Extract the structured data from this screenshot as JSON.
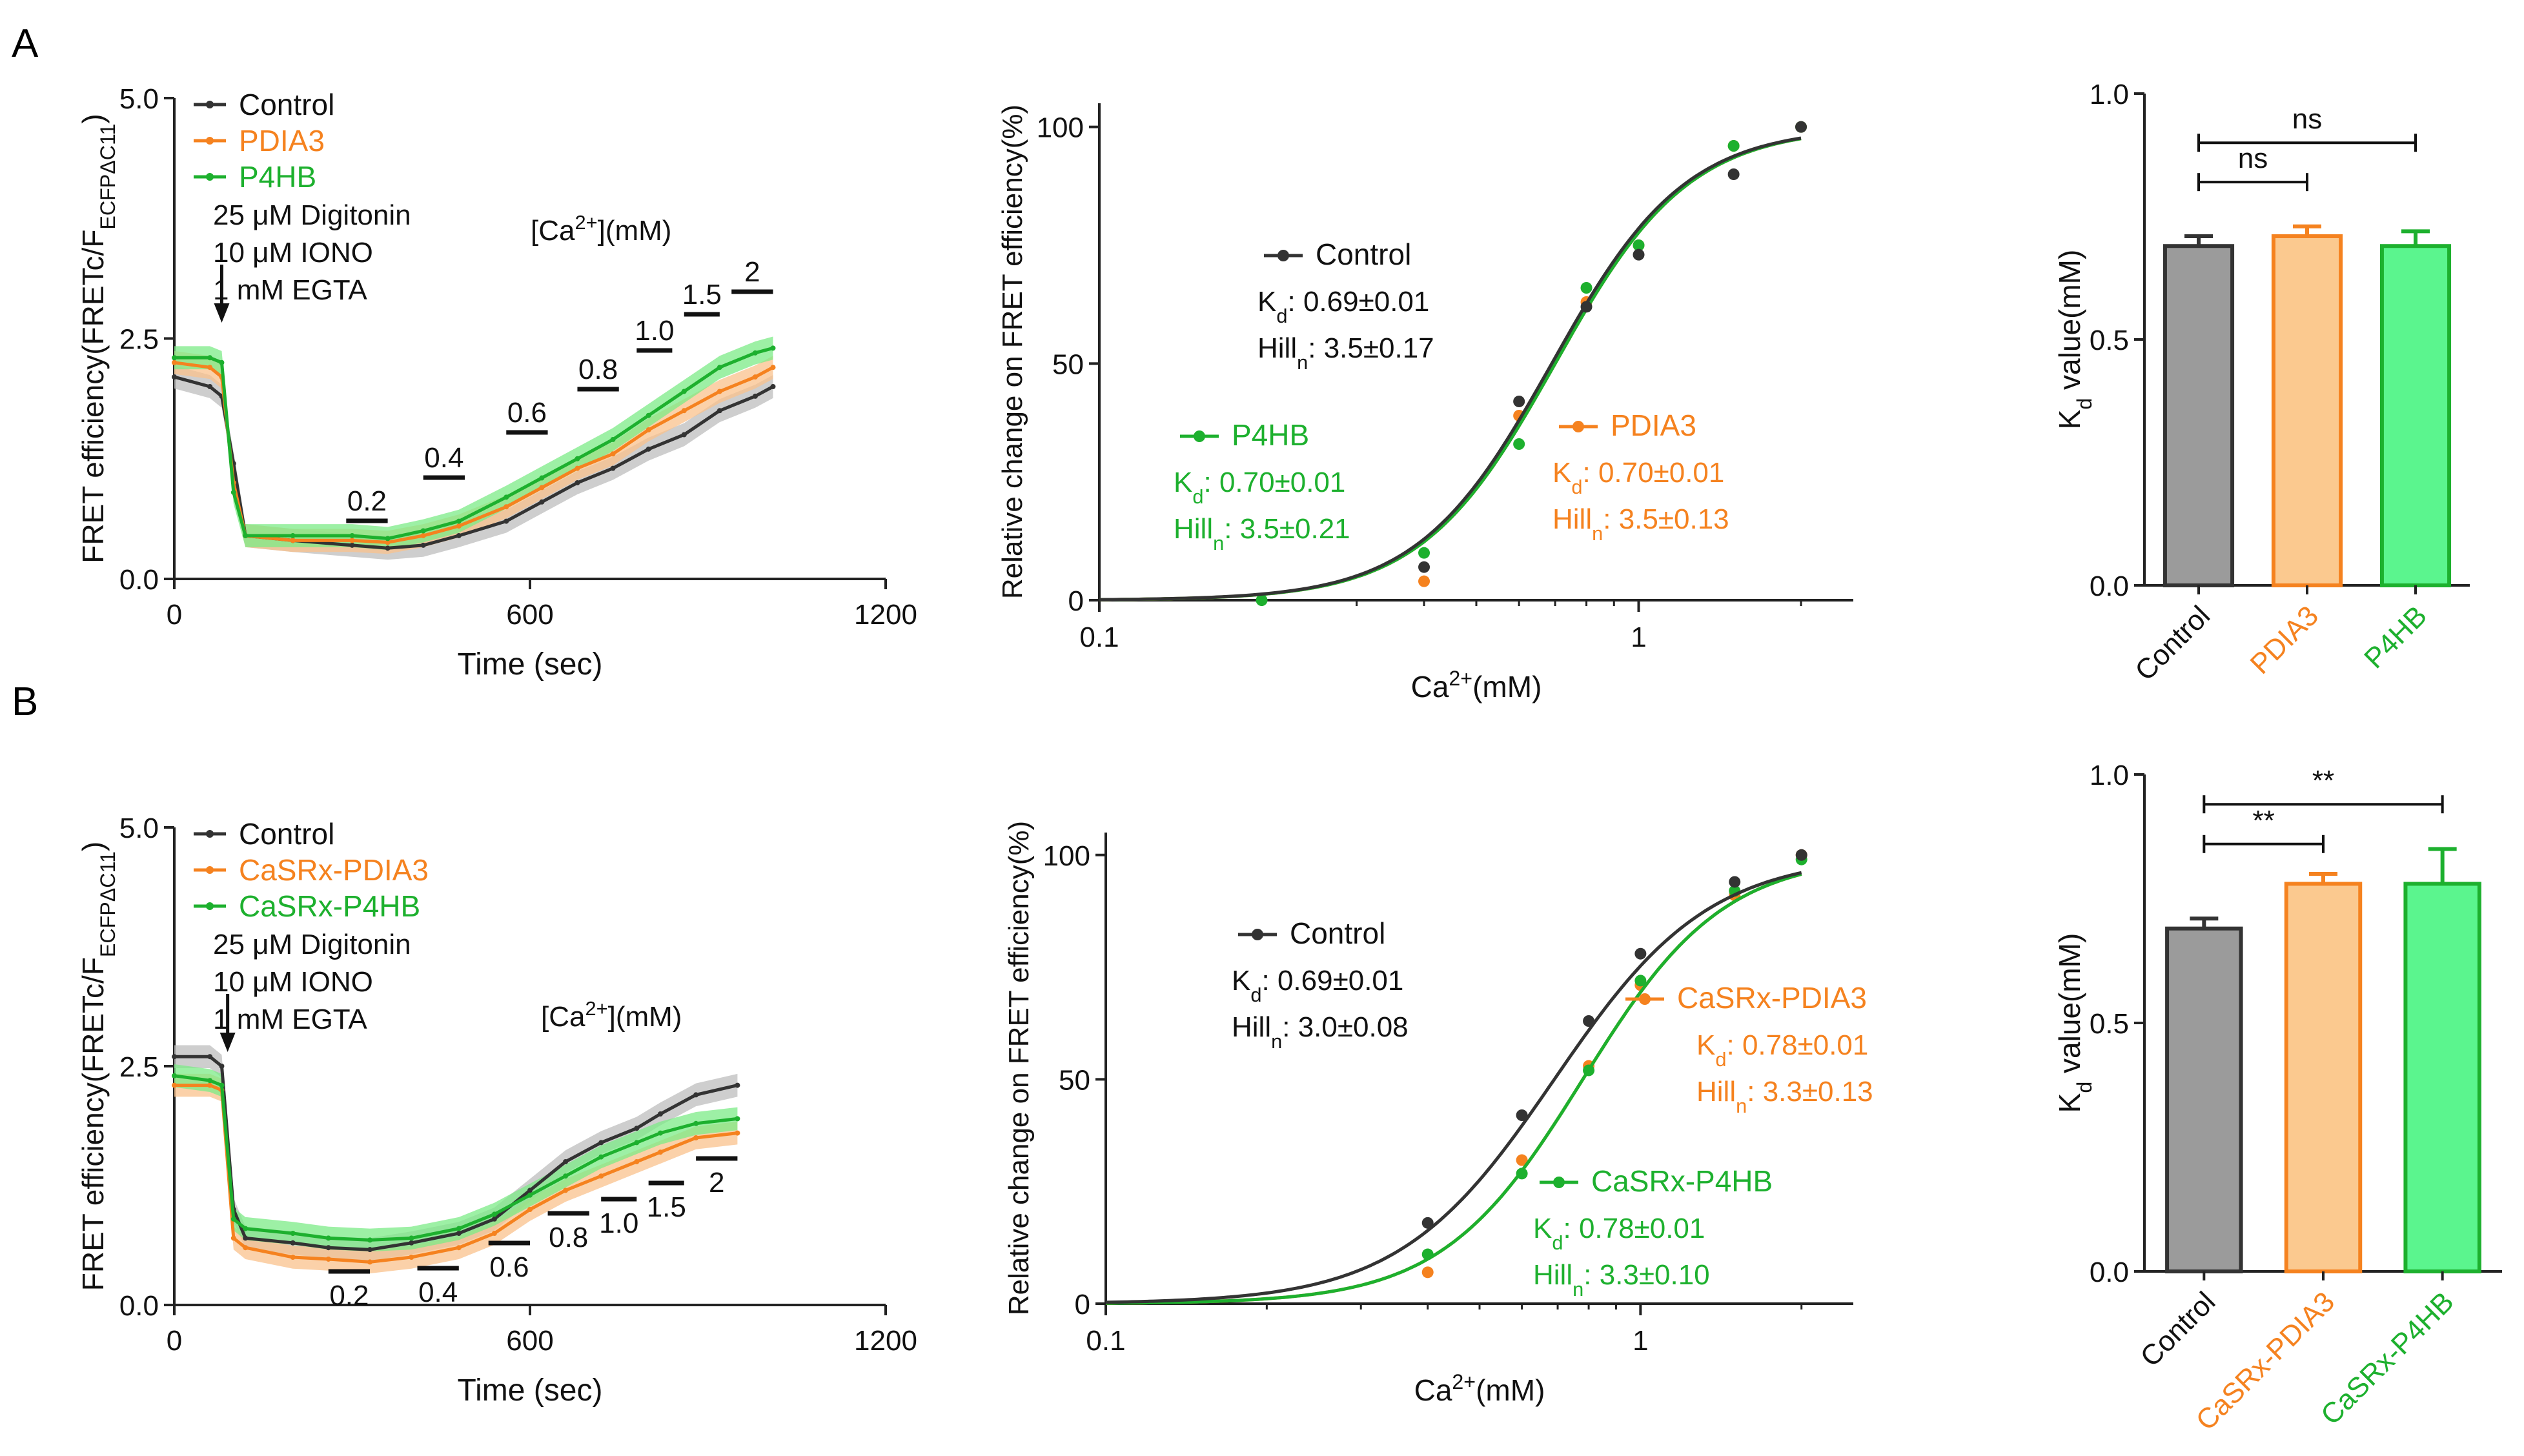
{
  "panel_labels": {
    "a": "A",
    "b": "B"
  },
  "colors": {
    "control": "#333333",
    "pdia3": "#F5821F",
    "p4hb": "#1DB02E",
    "control_band": "#bdbdbd",
    "pdia3_band": "#F9C18C",
    "p4hb_band": "#7CEB87",
    "bar_control": "#9b9b9b",
    "bar_pdia3": "#FBC98F",
    "bar_p4hb": "#5BF58E"
  },
  "chart_data": [
    {
      "id": "A-trace",
      "type": "line",
      "xlabel": "Time (sec)",
      "ylabel": "FRET efficiency(FRETc/F",
      "ylabel_sub": "ECFPΔC11",
      "ylabel_end": ")",
      "xlim": [
        0,
        1200
      ],
      "ylim": [
        0,
        5
      ],
      "xticks": [
        "0",
        "600",
        "1200"
      ],
      "yticks": [
        "0.0",
        "2.5",
        "5.0"
      ],
      "legend": [
        "Control",
        "PDIA3",
        "P4HB"
      ],
      "treatment": [
        "25 μM Digitonin",
        "10 μM IONO",
        "1 mM EGTA"
      ],
      "treatment_time": 80,
      "ca_label": "[Ca",
      "ca_sup": "2+",
      "ca_unit": "](mM)",
      "steps": [
        {
          "label": "0.2",
          "start": 290,
          "end": 360
        },
        {
          "label": "0.4",
          "start": 420,
          "end": 490
        },
        {
          "label": "0.6",
          "start": 560,
          "end": 630
        },
        {
          "label": "0.8",
          "start": 680,
          "end": 750
        },
        {
          "label": "1.0",
          "start": 780,
          "end": 840
        },
        {
          "label": "1.5",
          "start": 860,
          "end": 920
        },
        {
          "label": "2",
          "start": 940,
          "end": 1010
        }
      ],
      "series": [
        {
          "name": "Control",
          "points": [
            [
              0,
              2.1
            ],
            [
              60,
              2.0
            ],
            [
              80,
              1.9
            ],
            [
              100,
              1.2
            ],
            [
              120,
              0.45
            ],
            [
              200,
              0.4
            ],
            [
              300,
              0.35
            ],
            [
              360,
              0.32
            ],
            [
              420,
              0.35
            ],
            [
              480,
              0.45
            ],
            [
              560,
              0.6
            ],
            [
              620,
              0.8
            ],
            [
              680,
              1.0
            ],
            [
              740,
              1.15
            ],
            [
              800,
              1.35
            ],
            [
              860,
              1.5
            ],
            [
              920,
              1.75
            ],
            [
              980,
              1.9
            ],
            [
              1010,
              2.0
            ]
          ]
        },
        {
          "name": "PDIA3",
          "points": [
            [
              0,
              2.25
            ],
            [
              60,
              2.2
            ],
            [
              80,
              2.1
            ],
            [
              100,
              1.0
            ],
            [
              120,
              0.45
            ],
            [
              200,
              0.4
            ],
            [
              300,
              0.4
            ],
            [
              360,
              0.38
            ],
            [
              420,
              0.45
            ],
            [
              480,
              0.55
            ],
            [
              560,
              0.75
            ],
            [
              620,
              0.95
            ],
            [
              680,
              1.15
            ],
            [
              740,
              1.3
            ],
            [
              800,
              1.55
            ],
            [
              860,
              1.75
            ],
            [
              920,
              1.95
            ],
            [
              980,
              2.1
            ],
            [
              1010,
              2.2
            ]
          ]
        },
        {
          "name": "P4HB",
          "points": [
            [
              0,
              2.3
            ],
            [
              60,
              2.3
            ],
            [
              80,
              2.25
            ],
            [
              100,
              0.9
            ],
            [
              120,
              0.45
            ],
            [
              200,
              0.45
            ],
            [
              300,
              0.45
            ],
            [
              360,
              0.42
            ],
            [
              420,
              0.5
            ],
            [
              480,
              0.6
            ],
            [
              560,
              0.85
            ],
            [
              620,
              1.05
            ],
            [
              680,
              1.25
            ],
            [
              740,
              1.45
            ],
            [
              800,
              1.7
            ],
            [
              860,
              1.95
            ],
            [
              920,
              2.2
            ],
            [
              980,
              2.35
            ],
            [
              1010,
              2.4
            ]
          ]
        }
      ]
    },
    {
      "id": "A-curve",
      "type": "line",
      "xscale": "log",
      "xlabel": "Ca",
      "xlabel_sup": "2+",
      "xlabel_end": "(mM)",
      "ylabel": "Relative change on FRET efficiency(%)",
      "xlim": [
        0.1,
        2.5
      ],
      "ylim": [
        0,
        105
      ],
      "xticks": [
        "0.1",
        "1"
      ],
      "yticks": [
        "0",
        "50",
        "100"
      ],
      "series": [
        {
          "name": "Control",
          "kd": 0.69,
          "hill": 3.5,
          "kd_text": ": 0.69±0.01",
          "hill_text": ": 3.5±0.17",
          "points": [
            [
              0.4,
              7
            ],
            [
              0.6,
              42
            ],
            [
              0.8,
              62
            ],
            [
              1.0,
              73
            ],
            [
              1.5,
              90
            ],
            [
              2.0,
              100
            ]
          ]
        },
        {
          "name": "PDIA3",
          "kd": 0.7,
          "hill": 3.5,
          "kd_text": ": 0.70±0.01",
          "hill_text": ": 3.5±0.13",
          "points": [
            [
              0.4,
              4
            ],
            [
              0.6,
              39
            ],
            [
              0.8,
              63
            ],
            [
              1.0,
              75
            ],
            [
              1.5,
              96
            ],
            [
              2.0,
              100
            ]
          ]
        },
        {
          "name": "P4HB",
          "kd": 0.7,
          "hill": 3.5,
          "kd_text": ": 0.70±0.01",
          "hill_text": ": 3.5±0.21",
          "points": [
            [
              0.2,
              0
            ],
            [
              0.4,
              10
            ],
            [
              0.6,
              33
            ],
            [
              0.8,
              66
            ],
            [
              1.0,
              75
            ],
            [
              1.5,
              96
            ],
            [
              2.0,
              100
            ]
          ]
        }
      ]
    },
    {
      "id": "A-bar",
      "type": "bar",
      "ylabel": "K",
      "ylabel_sub": "d",
      "ylabel_end": " value(mM)",
      "ylim": [
        0,
        1.0
      ],
      "yticks": [
        "0.0",
        "0.5",
        "1.0"
      ],
      "categories": [
        "Control",
        "PDIA3",
        "P4HB"
      ],
      "values": [
        0.69,
        0.71,
        0.69
      ],
      "errors": [
        0.02,
        0.02,
        0.03
      ],
      "significance": [
        {
          "from": 0,
          "to": 1,
          "label": "ns",
          "level": 0.82
        },
        {
          "from": 0,
          "to": 2,
          "label": "ns",
          "level": 0.9
        }
      ]
    },
    {
      "id": "B-trace",
      "type": "line",
      "xlabel": "Time (sec)",
      "ylabel": "FRET efficiency(FRETc/F",
      "ylabel_sub": "ECFPΔC11",
      "ylabel_end": ")",
      "xlim": [
        0,
        1200
      ],
      "ylim": [
        0,
        5
      ],
      "xticks": [
        "0",
        "600",
        "1200"
      ],
      "yticks": [
        "0.0",
        "2.5",
        "5.0"
      ],
      "legend": [
        "Control",
        "CaSRx-PDIA3",
        "CaSRx-P4HB"
      ],
      "treatment": [
        "25 μM Digitonin",
        "10 μM IONO",
        "1 mM  EGTA"
      ],
      "treatment_time": 90,
      "ca_label": "[Ca",
      "ca_sup": "2+",
      "ca_unit": "](mM)",
      "steps": [
        {
          "label": "0.2",
          "start": 260,
          "end": 330
        },
        {
          "label": "0.4",
          "start": 410,
          "end": 480
        },
        {
          "label": "0.6",
          "start": 530,
          "end": 600
        },
        {
          "label": "0.8",
          "start": 630,
          "end": 700
        },
        {
          "label": "1.0",
          "start": 720,
          "end": 780
        },
        {
          "label": "1.5",
          "start": 800,
          "end": 860
        },
        {
          "label": "2",
          "start": 880,
          "end": 950
        }
      ],
      "series": [
        {
          "name": "Control",
          "points": [
            [
              0,
              2.6
            ],
            [
              60,
              2.6
            ],
            [
              80,
              2.5
            ],
            [
              100,
              1.0
            ],
            [
              120,
              0.7
            ],
            [
              200,
              0.65
            ],
            [
              260,
              0.6
            ],
            [
              330,
              0.58
            ],
            [
              400,
              0.65
            ],
            [
              480,
              0.75
            ],
            [
              540,
              0.9
            ],
            [
              600,
              1.2
            ],
            [
              660,
              1.5
            ],
            [
              720,
              1.7
            ],
            [
              780,
              1.85
            ],
            [
              820,
              2.0
            ],
            [
              880,
              2.2
            ],
            [
              950,
              2.3
            ]
          ]
        },
        {
          "name": "CaSRx-PDIA3",
          "points": [
            [
              0,
              2.3
            ],
            [
              60,
              2.3
            ],
            [
              80,
              2.25
            ],
            [
              100,
              0.7
            ],
            [
              120,
              0.6
            ],
            [
              200,
              0.5
            ],
            [
              260,
              0.48
            ],
            [
              330,
              0.45
            ],
            [
              400,
              0.5
            ],
            [
              480,
              0.6
            ],
            [
              540,
              0.75
            ],
            [
              600,
              1.0
            ],
            [
              660,
              1.2
            ],
            [
              720,
              1.35
            ],
            [
              780,
              1.5
            ],
            [
              820,
              1.6
            ],
            [
              880,
              1.75
            ],
            [
              950,
              1.8
            ]
          ]
        },
        {
          "name": "CaSRx-P4HB",
          "points": [
            [
              0,
              2.4
            ],
            [
              60,
              2.35
            ],
            [
              80,
              2.3
            ],
            [
              100,
              0.9
            ],
            [
              120,
              0.8
            ],
            [
              200,
              0.75
            ],
            [
              260,
              0.7
            ],
            [
              330,
              0.68
            ],
            [
              400,
              0.7
            ],
            [
              480,
              0.8
            ],
            [
              540,
              0.95
            ],
            [
              600,
              1.15
            ],
            [
              660,
              1.35
            ],
            [
              720,
              1.55
            ],
            [
              780,
              1.7
            ],
            [
              820,
              1.8
            ],
            [
              880,
              1.9
            ],
            [
              950,
              1.95
            ]
          ]
        }
      ]
    },
    {
      "id": "B-curve",
      "type": "line",
      "xscale": "log",
      "xlabel": "Ca",
      "xlabel_sup": "2+",
      "xlabel_end": "(mM)",
      "ylabel": "Relative change on FRET efficiency(%)",
      "xlim": [
        0.1,
        2.5
      ],
      "ylim": [
        0,
        105
      ],
      "xticks": [
        "0.1",
        "1"
      ],
      "yticks": [
        "0",
        "50",
        "100"
      ],
      "series": [
        {
          "name": "Control",
          "kd": 0.69,
          "hill": 3.0,
          "kd_text": ": 0.69±0.01",
          "hill_text": ": 3.0±0.08",
          "points": [
            [
              0.4,
              18
            ],
            [
              0.6,
              42
            ],
            [
              0.8,
              63
            ],
            [
              1.0,
              78
            ],
            [
              1.5,
              94
            ],
            [
              2.0,
              100
            ]
          ]
        },
        {
          "name": "CaSRx-PDIA3",
          "kd": 0.78,
          "hill": 3.3,
          "kd_text": ": 0.78±0.01",
          "hill_text": ": 3.3±0.13",
          "points": [
            [
              0.4,
              7
            ],
            [
              0.6,
              32
            ],
            [
              0.8,
              53
            ],
            [
              1.0,
              71
            ],
            [
              1.5,
              91
            ],
            [
              2.0,
              100
            ]
          ]
        },
        {
          "name": "CaSRx-P4HB",
          "kd": 0.78,
          "hill": 3.3,
          "kd_text": ": 0.78±0.01",
          "hill_text": ": 3.3±0.10",
          "points": [
            [
              0.4,
              11
            ],
            [
              0.6,
              29
            ],
            [
              0.8,
              52
            ],
            [
              1.0,
              72
            ],
            [
              1.5,
              92
            ],
            [
              2.0,
              99
            ]
          ]
        }
      ]
    },
    {
      "id": "B-bar",
      "type": "bar",
      "ylabel": "K",
      "ylabel_sub": "d",
      "ylabel_end": " value(mM)",
      "ylim": [
        0,
        1.0
      ],
      "yticks": [
        "0.0",
        "0.5",
        "1.0"
      ],
      "categories": [
        "Control",
        "CaSRx-PDIA3",
        "CaSRx-P4HB"
      ],
      "values": [
        0.69,
        0.78,
        0.78
      ],
      "errors": [
        0.02,
        0.02,
        0.07
      ],
      "significance": [
        {
          "from": 0,
          "to": 1,
          "label": "**",
          "level": 0.86
        },
        {
          "from": 0,
          "to": 2,
          "label": "**",
          "level": 0.94
        }
      ]
    }
  ]
}
